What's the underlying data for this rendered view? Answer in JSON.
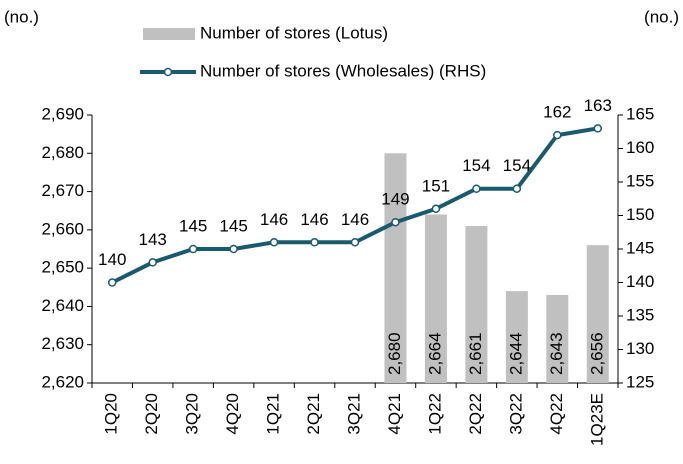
{
  "chart_data": {
    "type": "bar_line",
    "y_unit_left": "(no.)",
    "y_unit_right": "(no.)",
    "categories": [
      "1Q20",
      "2Q20",
      "3Q20",
      "4Q20",
      "1Q21",
      "2Q21",
      "3Q21",
      "4Q21",
      "1Q22",
      "2Q22",
      "3Q22",
      "4Q22",
      "1Q23E"
    ],
    "series": [
      {
        "name": "Number of stores (Lotus)",
        "type": "bar",
        "color": "#c0c0c0",
        "axis": "y",
        "values": [
          null,
          null,
          null,
          null,
          null,
          null,
          null,
          2680,
          2664,
          2661,
          2644,
          2643,
          2656
        ],
        "value_labels": [
          null,
          null,
          null,
          null,
          null,
          null,
          null,
          "2,680",
          "2,664",
          "2,661",
          "2,644",
          "2,643",
          "2,656"
        ]
      },
      {
        "name": "Number of stores (Wholesales) (RHS)",
        "type": "line",
        "color": "#1a5a6e",
        "axis": "y2",
        "values": [
          140,
          143,
          145,
          145,
          146,
          146,
          146,
          149,
          151,
          154,
          154,
          162,
          163
        ]
      }
    ],
    "ylim": [
      2620,
      2690
    ],
    "yticks": [
      {
        "value": 2620,
        "label": "2,620"
      },
      {
        "value": 2630,
        "label": "2,630"
      },
      {
        "value": 2640,
        "label": "2,640"
      },
      {
        "value": 2650,
        "label": "2,650"
      },
      {
        "value": 2660,
        "label": "2,660"
      },
      {
        "value": 2670,
        "label": "2,670"
      },
      {
        "value": 2680,
        "label": "2,680"
      },
      {
        "value": 2690,
        "label": "2,690"
      }
    ],
    "y2lim": [
      125,
      165
    ],
    "y2ticks": [
      125,
      130,
      135,
      140,
      145,
      150,
      155,
      160,
      165
    ],
    "grid": false
  }
}
